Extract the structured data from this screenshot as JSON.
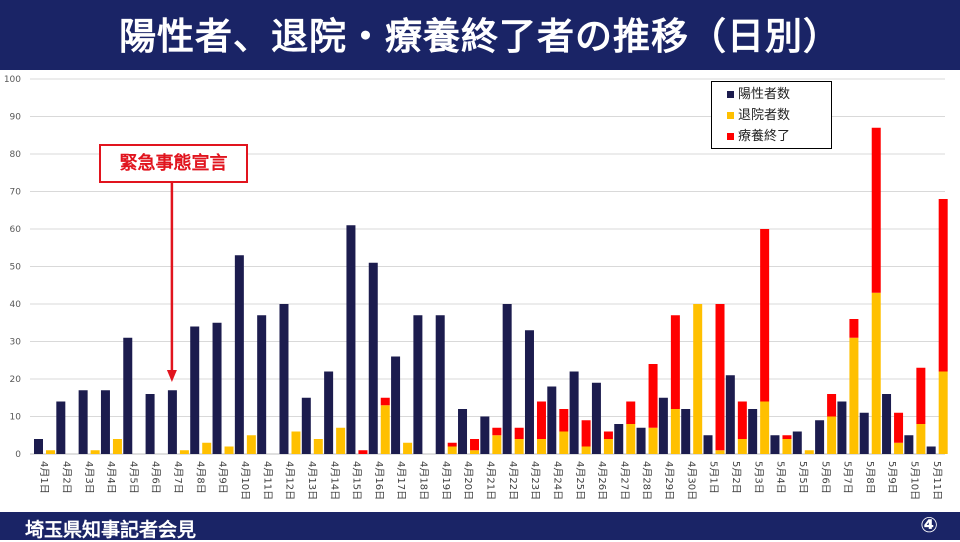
{
  "header": {
    "title": "陽性者、退院・療養終了者の推移（日別）"
  },
  "footer": {
    "organization": "埼玉県知事記者会見",
    "page_number": "④"
  },
  "annotation": {
    "label": "緊急事態宣言",
    "target_category": "4月7日"
  },
  "colors": {
    "positive": "#1c1c4e",
    "discharged": "#ffc000",
    "recovered": "#ff0000",
    "header_bg": "#1a2466",
    "callout": "#e1141e"
  },
  "chart_data": {
    "type": "bar",
    "title": "",
    "xlabel": "",
    "ylabel": "",
    "ylim": [
      0,
      100
    ],
    "yticks": [
      0,
      10,
      20,
      30,
      40,
      50,
      60,
      70,
      80,
      90,
      100
    ],
    "grid": true,
    "legend_position": "top-right",
    "categories": [
      "4月1日",
      "4月2日",
      "4月3日",
      "4月4日",
      "4月5日",
      "4月6日",
      "4月7日",
      "4月8日",
      "4月9日",
      "4月10日",
      "4月11日",
      "4月12日",
      "4月13日",
      "4月14日",
      "4月15日",
      "4月16日",
      "4月17日",
      "4月18日",
      "4月19日",
      "4月20日",
      "4月21日",
      "4月22日",
      "4月23日",
      "4月24日",
      "4月25日",
      "4月26日",
      "4月27日",
      "4月28日",
      "4月29日",
      "4月30日",
      "5月1日",
      "5月2日",
      "5月3日",
      "5月4日",
      "5月5日",
      "5月6日",
      "5月7日",
      "5月8日",
      "5月9日",
      "5月10日",
      "5月11日"
    ],
    "series": [
      {
        "name": "陽性者数",
        "stack": "positive",
        "values": [
          4,
          14,
          17,
          17,
          31,
          16,
          17,
          34,
          35,
          53,
          37,
          40,
          15,
          22,
          61,
          51,
          26,
          37,
          37,
          12,
          10,
          40,
          33,
          18,
          22,
          19,
          8,
          7,
          15,
          12,
          5,
          21,
          12,
          5,
          6,
          9,
          14,
          11,
          16,
          5,
          2
        ]
      },
      {
        "name": "退院者数",
        "stack": "released",
        "values": [
          1,
          0,
          1,
          4,
          0,
          0,
          1,
          3,
          2,
          5,
          0,
          6,
          4,
          7,
          0,
          13,
          3,
          0,
          2,
          1,
          5,
          4,
          4,
          6,
          2,
          4,
          8,
          7,
          12,
          40,
          1,
          4,
          14,
          4,
          1,
          10,
          31,
          43,
          3,
          8,
          22
        ]
      },
      {
        "name": "療養終了",
        "stack": "released",
        "values": [
          0,
          0,
          0,
          0,
          0,
          0,
          0,
          0,
          0,
          0,
          0,
          0,
          0,
          0,
          1,
          2,
          0,
          0,
          1,
          3,
          2,
          3,
          10,
          6,
          7,
          2,
          6,
          17,
          25,
          0,
          39,
          10,
          46,
          1,
          0,
          6,
          5,
          44,
          8,
          15,
          46
        ]
      }
    ]
  }
}
